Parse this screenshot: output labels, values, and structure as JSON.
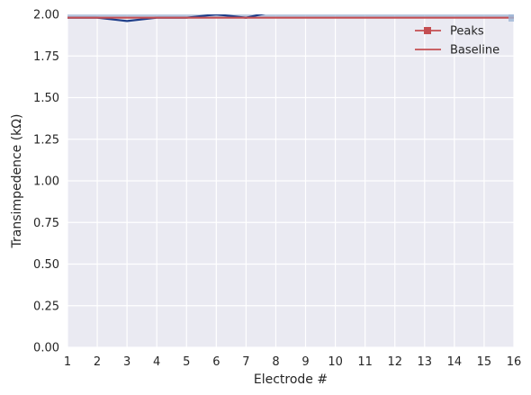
{
  "chart_data": {
    "type": "line",
    "xlabel": "Electrode #",
    "ylabel": "Transimpedence (kΩ)",
    "xlim": [
      1,
      16
    ],
    "ylim": [
      0,
      2.0
    ],
    "x_ticks": [
      "1",
      "2",
      "3",
      "4",
      "5",
      "6",
      "7",
      "8",
      "9",
      "10",
      "11",
      "12",
      "13",
      "14",
      "15",
      "16"
    ],
    "y_ticks": [
      "0.00",
      "0.25",
      "0.50",
      "0.75",
      "1.00",
      "1.25",
      "1.50",
      "1.75",
      "2.00"
    ],
    "grid": true,
    "legend_position": "top-right",
    "series": [
      {
        "name": "Peaks",
        "color": "#c44e52",
        "marker": "square",
        "values": [
          1.98,
          1.98,
          1.98,
          1.98,
          1.98,
          1.98,
          1.98,
          1.98,
          1.98,
          1.98,
          1.98,
          1.98,
          1.98,
          1.98,
          1.98,
          1.98
        ]
      },
      {
        "name": "Baseline",
        "color": "#c44e52",
        "values": [
          1.98,
          1.98,
          1.98,
          1.98,
          1.98,
          1.98,
          1.98,
          1.98,
          1.98,
          1.98,
          1.98,
          1.98,
          1.98,
          1.98,
          1.98,
          1.98
        ]
      }
    ],
    "extra_series": [
      {
        "color": "#1f3f8a",
        "x": [
          1,
          2,
          3,
          4,
          5,
          6,
          7,
          8
        ],
        "values": [
          1.98,
          1.98,
          1.96,
          1.98,
          1.98,
          2.0,
          1.98,
          2.02
        ]
      }
    ]
  }
}
